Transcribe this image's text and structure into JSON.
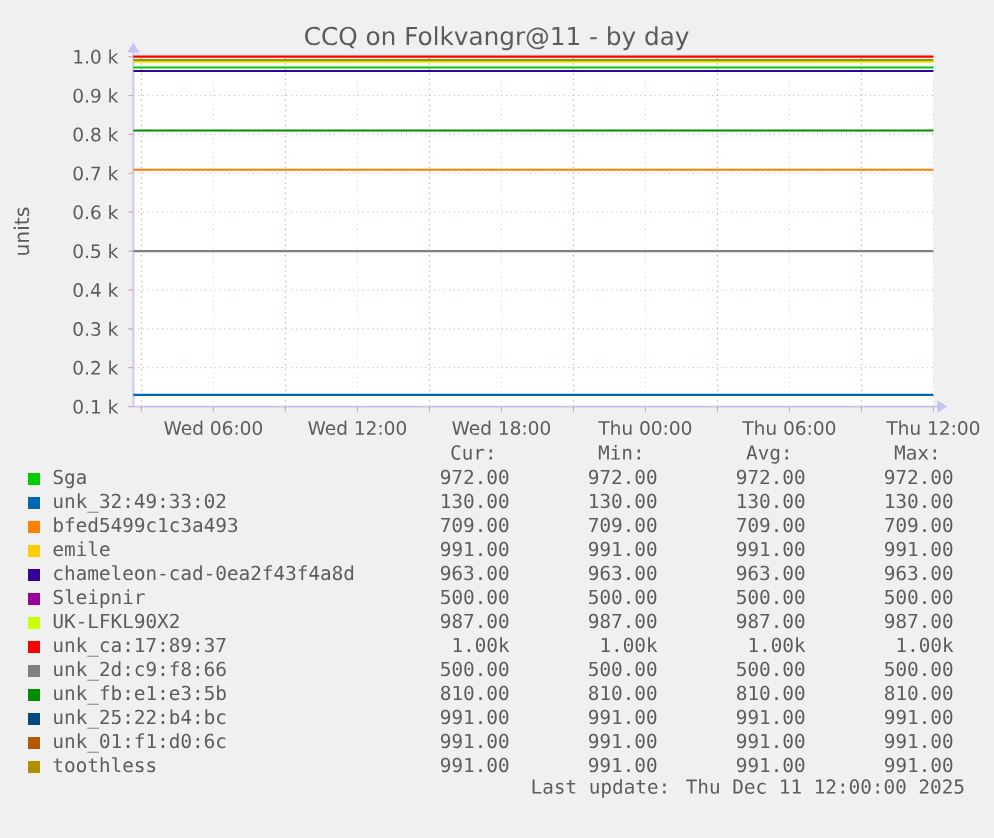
{
  "chart_data": {
    "type": "line",
    "title": "CCQ on Folkvangr@11 - by day",
    "ylabel": "units",
    "x": [
      "2025-12-10T02:40",
      "2025-12-11T12:00"
    ],
    "xlim": [
      "2025-12-10T02:40",
      "2025-12-11T12:00"
    ],
    "xticks": [
      {
        "value": "2025-12-10T03:00",
        "label": null
      },
      {
        "value": "2025-12-10T06:00",
        "label": "Wed 06:00"
      },
      {
        "value": "2025-12-10T09:00",
        "label": null
      },
      {
        "value": "2025-12-10T12:00",
        "label": "Wed 12:00"
      },
      {
        "value": "2025-12-10T15:00",
        "label": null
      },
      {
        "value": "2025-12-10T18:00",
        "label": "Wed 18:00"
      },
      {
        "value": "2025-12-10T21:00",
        "label": null
      },
      {
        "value": "2025-12-11T00:00",
        "label": "Thu 00:00"
      },
      {
        "value": "2025-12-11T03:00",
        "label": null
      },
      {
        "value": "2025-12-11T06:00",
        "label": "Thu 06:00"
      },
      {
        "value": "2025-12-11T09:00",
        "label": null
      },
      {
        "value": "2025-12-11T12:00",
        "label": "Thu 12:00"
      }
    ],
    "ylim": [
      100,
      1000
    ],
    "yticks": [
      {
        "value": 100,
        "label": "0.1 k"
      },
      {
        "value": 200,
        "label": "0.2 k"
      },
      {
        "value": 300,
        "label": "0.3 k"
      },
      {
        "value": 400,
        "label": "0.4 k"
      },
      {
        "value": 500,
        "label": "0.5 k"
      },
      {
        "value": 600,
        "label": "0.6 k"
      },
      {
        "value": 700,
        "label": "0.7 k"
      },
      {
        "value": 800,
        "label": "0.8 k"
      },
      {
        "value": 900,
        "label": "0.9 k"
      },
      {
        "value": 1000,
        "label": "1.0 k"
      }
    ],
    "grid": true,
    "legend": "bottom",
    "series": [
      {
        "name": "Sga",
        "color": "#00cc00",
        "values": [
          972,
          972
        ]
      },
      {
        "name": "unk_32:49:33:02",
        "color": "#0066b3",
        "values": [
          130,
          130
        ]
      },
      {
        "name": "bfed5499c1c3a493",
        "color": "#ff8000",
        "values": [
          709,
          709
        ]
      },
      {
        "name": "emile",
        "color": "#ffcc00",
        "values": [
          null,
          null
        ]
      },
      {
        "name": "chameleon-cad-0ea2f43f4a8d",
        "color": "#330099",
        "values": [
          963,
          963
        ]
      },
      {
        "name": "Sleipnir",
        "color": "#990099",
        "values": [
          null,
          null
        ]
      },
      {
        "name": "UK-LFKL90X2",
        "color": "#ccff00",
        "values": [
          987,
          987
        ]
      },
      {
        "name": "unk_ca:17:89:37",
        "color": "#ff0000",
        "values": [
          1000,
          1000
        ]
      },
      {
        "name": "unk_2d:c9:f8:66",
        "color": "#808080",
        "values": [
          500,
          500
        ]
      },
      {
        "name": "unk_fb:e1:e3:5b",
        "color": "#008f00",
        "values": [
          810,
          810
        ]
      },
      {
        "name": "unk_25:22:b4:bc",
        "color": "#00487d",
        "values": [
          null,
          null
        ]
      },
      {
        "name": "unk_01:f1:d0:6c",
        "color": "#b35a00",
        "values": [
          null,
          null
        ]
      },
      {
        "name": "toothless",
        "color": "#b38f00",
        "values": [
          991,
          991
        ]
      }
    ],
    "annotations": [
      "Cur:",
      "Min:",
      "Avg:",
      "Max:",
      "972.00",
      "972.00",
      "972.00",
      "972.00",
      "130.00",
      "130.00",
      "130.00",
      "130.00",
      "709.00",
      "709.00",
      "709.00",
      "709.00",
      "991.00",
      "991.00",
      "991.00",
      "991.00",
      "963.00",
      "963.00",
      "963.00",
      "963.00",
      "500.00",
      "500.00",
      "500.00",
      "500.00",
      "987.00",
      "987.00",
      "987.00",
      "987.00",
      "1.00k",
      "1.00k",
      "1.00k",
      "1.00k",
      "500.00",
      "500.00",
      "500.00",
      "500.00",
      "810.00",
      "810.00",
      "810.00",
      "810.00",
      "991.00",
      "991.00",
      "991.00",
      "991.00",
      "991.00",
      "991.00",
      "991.00",
      "991.00",
      "991.00",
      "991.00",
      "991.00",
      "991.00",
      "Last update: Thu Dec 11 12:00:00 2025"
    ]
  }
}
